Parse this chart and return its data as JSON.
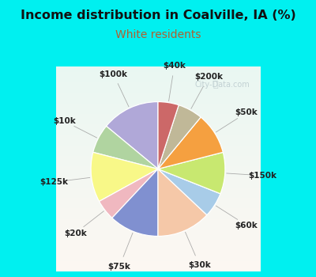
{
  "title": "Income distribution in Coalville, IA (%)",
  "subtitle": "White residents",
  "title_color": "#111111",
  "subtitle_color": "#b06030",
  "bg_cyan": "#00f0f0",
  "chart_bg_color": "#e8f5ee",
  "labels": [
    "$100k",
    "$10k",
    "$125k",
    "$20k",
    "$75k",
    "$30k",
    "$60k",
    "$150k",
    "$50k",
    "$200k",
    "$40k"
  ],
  "values": [
    14,
    7,
    12,
    5,
    12,
    13,
    6,
    10,
    10,
    6,
    5
  ],
  "colors": [
    "#b0a8d8",
    "#b0d4a0",
    "#f8f888",
    "#f0b8c0",
    "#8090d0",
    "#f5c8a8",
    "#a8cce8",
    "#c8e870",
    "#f5a040",
    "#c0b898",
    "#cc6868"
  ],
  "startangle": 90,
  "figsize": [
    4.0,
    3.5
  ],
  "dpi": 100,
  "watermark": "City-Data.com"
}
